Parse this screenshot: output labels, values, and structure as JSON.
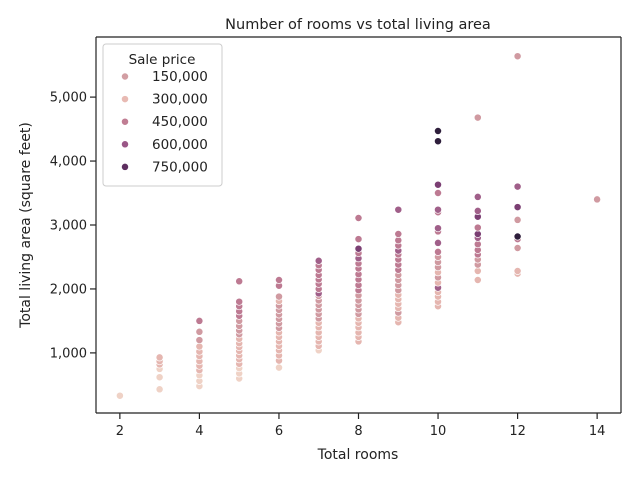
{
  "chart_data": {
    "type": "scatter",
    "title": "Number of rooms vs total living area",
    "xlabel": "Total rooms",
    "ylabel": "Total living area (square feet)",
    "xlim": [
      1.4,
      14.6
    ],
    "ylim": [
      60,
      5940
    ],
    "x_ticks": [
      2,
      4,
      6,
      8,
      10,
      12,
      14
    ],
    "x_tick_labels": [
      "2",
      "4",
      "6",
      "8",
      "10",
      "12",
      "14"
    ],
    "y_ticks": [
      1000,
      2000,
      3000,
      4000,
      5000
    ],
    "y_tick_labels": [
      "1,000",
      "2,000",
      "3,000",
      "4,000",
      "5,000"
    ],
    "grid": false,
    "legend": {
      "title": "Sale price",
      "placement": "top-left",
      "entries": [
        {
          "label": "150,000",
          "color": "#d29ea3"
        },
        {
          "label": "300,000",
          "color": "#e8bab3"
        },
        {
          "label": "450,000",
          "color": "#c07d93"
        },
        {
          "label": "600,000",
          "color": "#9a5787"
        },
        {
          "label": "750,000",
          "color": "#5e2f60"
        }
      ]
    },
    "colors": {
      "p100": "#efd2c6",
      "p150": "#e5b6b0",
      "p250": "#d09aa1",
      "p350": "#bd7a92",
      "p450": "#a05f89",
      "p600": "#7b3f73",
      "p750": "#2e1e3b"
    },
    "points": [
      {
        "x": 2,
        "y": 330,
        "p": "p100"
      },
      {
        "x": 3,
        "y": 430,
        "p": "p100"
      },
      {
        "x": 3,
        "y": 620,
        "p": "p100"
      },
      {
        "x": 3,
        "y": 750,
        "p": "p100"
      },
      {
        "x": 3,
        "y": 820,
        "p": "p150"
      },
      {
        "x": 3,
        "y": 870,
        "p": "p150"
      },
      {
        "x": 3,
        "y": 930,
        "p": "p150"
      },
      {
        "x": 4,
        "y": 480,
        "p": "p100"
      },
      {
        "x": 4,
        "y": 560,
        "p": "p100"
      },
      {
        "x": 4,
        "y": 650,
        "p": "p100"
      },
      {
        "x": 4,
        "y": 730,
        "p": "p150"
      },
      {
        "x": 4,
        "y": 800,
        "p": "p150"
      },
      {
        "x": 4,
        "y": 870,
        "p": "p150"
      },
      {
        "x": 4,
        "y": 950,
        "p": "p150"
      },
      {
        "x": 4,
        "y": 1020,
        "p": "p150"
      },
      {
        "x": 4,
        "y": 1100,
        "p": "p150"
      },
      {
        "x": 4,
        "y": 1200,
        "p": "p250"
      },
      {
        "x": 4,
        "y": 1330,
        "p": "p250"
      },
      {
        "x": 4,
        "y": 1500,
        "p": "p350"
      },
      {
        "x": 5,
        "y": 600,
        "p": "p100"
      },
      {
        "x": 5,
        "y": 680,
        "p": "p100"
      },
      {
        "x": 5,
        "y": 760,
        "p": "p100"
      },
      {
        "x": 5,
        "y": 830,
        "p": "p150"
      },
      {
        "x": 5,
        "y": 900,
        "p": "p150"
      },
      {
        "x": 5,
        "y": 960,
        "p": "p150"
      },
      {
        "x": 5,
        "y": 1030,
        "p": "p150"
      },
      {
        "x": 5,
        "y": 1090,
        "p": "p150"
      },
      {
        "x": 5,
        "y": 1150,
        "p": "p150"
      },
      {
        "x": 5,
        "y": 1220,
        "p": "p150"
      },
      {
        "x": 5,
        "y": 1290,
        "p": "p250"
      },
      {
        "x": 5,
        "y": 1350,
        "p": "p250"
      },
      {
        "x": 5,
        "y": 1420,
        "p": "p250"
      },
      {
        "x": 5,
        "y": 1500,
        "p": "p250"
      },
      {
        "x": 5,
        "y": 1580,
        "p": "p350"
      },
      {
        "x": 5,
        "y": 1650,
        "p": "p350"
      },
      {
        "x": 5,
        "y": 1730,
        "p": "p350"
      },
      {
        "x": 5,
        "y": 1800,
        "p": "p350"
      },
      {
        "x": 5,
        "y": 2120,
        "p": "p350"
      },
      {
        "x": 6,
        "y": 770,
        "p": "p100"
      },
      {
        "x": 6,
        "y": 880,
        "p": "p150"
      },
      {
        "x": 6,
        "y": 960,
        "p": "p150"
      },
      {
        "x": 6,
        "y": 1040,
        "p": "p150"
      },
      {
        "x": 6,
        "y": 1110,
        "p": "p150"
      },
      {
        "x": 6,
        "y": 1180,
        "p": "p150"
      },
      {
        "x": 6,
        "y": 1250,
        "p": "p150"
      },
      {
        "x": 6,
        "y": 1320,
        "p": "p150"
      },
      {
        "x": 6,
        "y": 1390,
        "p": "p250"
      },
      {
        "x": 6,
        "y": 1460,
        "p": "p250"
      },
      {
        "x": 6,
        "y": 1530,
        "p": "p250"
      },
      {
        "x": 6,
        "y": 1600,
        "p": "p250"
      },
      {
        "x": 6,
        "y": 1670,
        "p": "p250"
      },
      {
        "x": 6,
        "y": 1740,
        "p": "p250"
      },
      {
        "x": 6,
        "y": 1810,
        "p": "p150"
      },
      {
        "x": 6,
        "y": 1880,
        "p": "p250"
      },
      {
        "x": 6,
        "y": 2050,
        "p": "p350"
      },
      {
        "x": 6,
        "y": 2140,
        "p": "p350"
      },
      {
        "x": 7,
        "y": 1040,
        "p": "p100"
      },
      {
        "x": 7,
        "y": 1110,
        "p": "p150"
      },
      {
        "x": 7,
        "y": 1180,
        "p": "p150"
      },
      {
        "x": 7,
        "y": 1250,
        "p": "p150"
      },
      {
        "x": 7,
        "y": 1320,
        "p": "p150"
      },
      {
        "x": 7,
        "y": 1400,
        "p": "p150"
      },
      {
        "x": 7,
        "y": 1470,
        "p": "p150"
      },
      {
        "x": 7,
        "y": 1540,
        "p": "p250"
      },
      {
        "x": 7,
        "y": 1610,
        "p": "p250"
      },
      {
        "x": 7,
        "y": 1680,
        "p": "p250"
      },
      {
        "x": 7,
        "y": 1750,
        "p": "p250"
      },
      {
        "x": 7,
        "y": 1820,
        "p": "p250"
      },
      {
        "x": 7,
        "y": 1890,
        "p": "p250"
      },
      {
        "x": 7,
        "y": 1930,
        "p": "p450"
      },
      {
        "x": 7,
        "y": 2000,
        "p": "p350"
      },
      {
        "x": 7,
        "y": 2080,
        "p": "p350"
      },
      {
        "x": 7,
        "y": 2150,
        "p": "p350"
      },
      {
        "x": 7,
        "y": 2220,
        "p": "p350"
      },
      {
        "x": 7,
        "y": 2300,
        "p": "p350"
      },
      {
        "x": 7,
        "y": 2370,
        "p": "p350"
      },
      {
        "x": 7,
        "y": 2440,
        "p": "p450"
      },
      {
        "x": 8,
        "y": 1180,
        "p": "p150"
      },
      {
        "x": 8,
        "y": 1250,
        "p": "p150"
      },
      {
        "x": 8,
        "y": 1320,
        "p": "p150"
      },
      {
        "x": 8,
        "y": 1400,
        "p": "p150"
      },
      {
        "x": 8,
        "y": 1470,
        "p": "p150"
      },
      {
        "x": 8,
        "y": 1540,
        "p": "p150"
      },
      {
        "x": 8,
        "y": 1610,
        "p": "p250"
      },
      {
        "x": 8,
        "y": 1680,
        "p": "p250"
      },
      {
        "x": 8,
        "y": 1750,
        "p": "p250"
      },
      {
        "x": 8,
        "y": 1820,
        "p": "p250"
      },
      {
        "x": 8,
        "y": 1900,
        "p": "p250"
      },
      {
        "x": 8,
        "y": 1980,
        "p": "p350"
      },
      {
        "x": 8,
        "y": 2060,
        "p": "p350"
      },
      {
        "x": 8,
        "y": 2150,
        "p": "p350"
      },
      {
        "x": 8,
        "y": 2230,
        "p": "p350"
      },
      {
        "x": 8,
        "y": 2320,
        "p": "p350"
      },
      {
        "x": 8,
        "y": 2400,
        "p": "p350"
      },
      {
        "x": 8,
        "y": 2480,
        "p": "p450"
      },
      {
        "x": 8,
        "y": 2560,
        "p": "p350"
      },
      {
        "x": 8,
        "y": 2630,
        "p": "p600"
      },
      {
        "x": 8,
        "y": 2780,
        "p": "p350"
      },
      {
        "x": 8,
        "y": 3110,
        "p": "p350"
      },
      {
        "x": 9,
        "y": 1480,
        "p": "p150"
      },
      {
        "x": 9,
        "y": 1550,
        "p": "p150"
      },
      {
        "x": 9,
        "y": 1630,
        "p": "p250"
      },
      {
        "x": 9,
        "y": 1700,
        "p": "p150"
      },
      {
        "x": 9,
        "y": 1770,
        "p": "p150"
      },
      {
        "x": 9,
        "y": 1840,
        "p": "p150"
      },
      {
        "x": 9,
        "y": 1910,
        "p": "p150"
      },
      {
        "x": 9,
        "y": 1980,
        "p": "p250"
      },
      {
        "x": 9,
        "y": 2060,
        "p": "p250"
      },
      {
        "x": 9,
        "y": 2140,
        "p": "p250"
      },
      {
        "x": 9,
        "y": 2220,
        "p": "p250"
      },
      {
        "x": 9,
        "y": 2300,
        "p": "p350"
      },
      {
        "x": 9,
        "y": 2380,
        "p": "p350"
      },
      {
        "x": 9,
        "y": 2460,
        "p": "p350"
      },
      {
        "x": 9,
        "y": 2540,
        "p": "p350"
      },
      {
        "x": 9,
        "y": 2600,
        "p": "p450"
      },
      {
        "x": 9,
        "y": 2680,
        "p": "p350"
      },
      {
        "x": 9,
        "y": 2760,
        "p": "p350"
      },
      {
        "x": 9,
        "y": 2860,
        "p": "p350"
      },
      {
        "x": 9,
        "y": 3240,
        "p": "p450"
      },
      {
        "x": 10,
        "y": 1730,
        "p": "p150"
      },
      {
        "x": 10,
        "y": 1800,
        "p": "p150"
      },
      {
        "x": 10,
        "y": 1880,
        "p": "p150"
      },
      {
        "x": 10,
        "y": 1950,
        "p": "p150"
      },
      {
        "x": 10,
        "y": 2020,
        "p": "p450"
      },
      {
        "x": 10,
        "y": 2100,
        "p": "p150"
      },
      {
        "x": 10,
        "y": 2180,
        "p": "p250"
      },
      {
        "x": 10,
        "y": 2260,
        "p": "p150"
      },
      {
        "x": 10,
        "y": 2340,
        "p": "p250"
      },
      {
        "x": 10,
        "y": 2420,
        "p": "p250"
      },
      {
        "x": 10,
        "y": 2500,
        "p": "p250"
      },
      {
        "x": 10,
        "y": 2580,
        "p": "p350"
      },
      {
        "x": 10,
        "y": 2720,
        "p": "p450"
      },
      {
        "x": 10,
        "y": 2900,
        "p": "p350"
      },
      {
        "x": 10,
        "y": 2950,
        "p": "p450"
      },
      {
        "x": 10,
        "y": 3200,
        "p": "p350"
      },
      {
        "x": 10,
        "y": 3240,
        "p": "p450"
      },
      {
        "x": 10,
        "y": 3500,
        "p": "p350"
      },
      {
        "x": 10,
        "y": 3630,
        "p": "p600"
      },
      {
        "x": 10,
        "y": 4310,
        "p": "p750"
      },
      {
        "x": 10,
        "y": 4470,
        "p": "p750"
      },
      {
        "x": 11,
        "y": 2140,
        "p": "p150"
      },
      {
        "x": 11,
        "y": 2280,
        "p": "p150"
      },
      {
        "x": 11,
        "y": 2380,
        "p": "p250"
      },
      {
        "x": 11,
        "y": 2460,
        "p": "p250"
      },
      {
        "x": 11,
        "y": 2540,
        "p": "p350"
      },
      {
        "x": 11,
        "y": 2610,
        "p": "p350"
      },
      {
        "x": 11,
        "y": 2700,
        "p": "p350"
      },
      {
        "x": 11,
        "y": 2800,
        "p": "p450"
      },
      {
        "x": 11,
        "y": 2860,
        "p": "p600"
      },
      {
        "x": 11,
        "y": 2960,
        "p": "p350"
      },
      {
        "x": 11,
        "y": 3130,
        "p": "p600"
      },
      {
        "x": 11,
        "y": 3220,
        "p": "p450"
      },
      {
        "x": 11,
        "y": 3440,
        "p": "p450"
      },
      {
        "x": 11,
        "y": 4680,
        "p": "p250"
      },
      {
        "x": 12,
        "y": 2240,
        "p": "p150"
      },
      {
        "x": 12,
        "y": 2280,
        "p": "p150"
      },
      {
        "x": 12,
        "y": 2640,
        "p": "p250"
      },
      {
        "x": 12,
        "y": 2780,
        "p": "p350"
      },
      {
        "x": 12,
        "y": 2820,
        "p": "p750"
      },
      {
        "x": 12,
        "y": 3080,
        "p": "p250"
      },
      {
        "x": 12,
        "y": 3280,
        "p": "p600"
      },
      {
        "x": 12,
        "y": 3600,
        "p": "p450"
      },
      {
        "x": 12,
        "y": 5640,
        "p": "p250"
      },
      {
        "x": 14,
        "y": 3400,
        "p": "p250"
      }
    ]
  }
}
